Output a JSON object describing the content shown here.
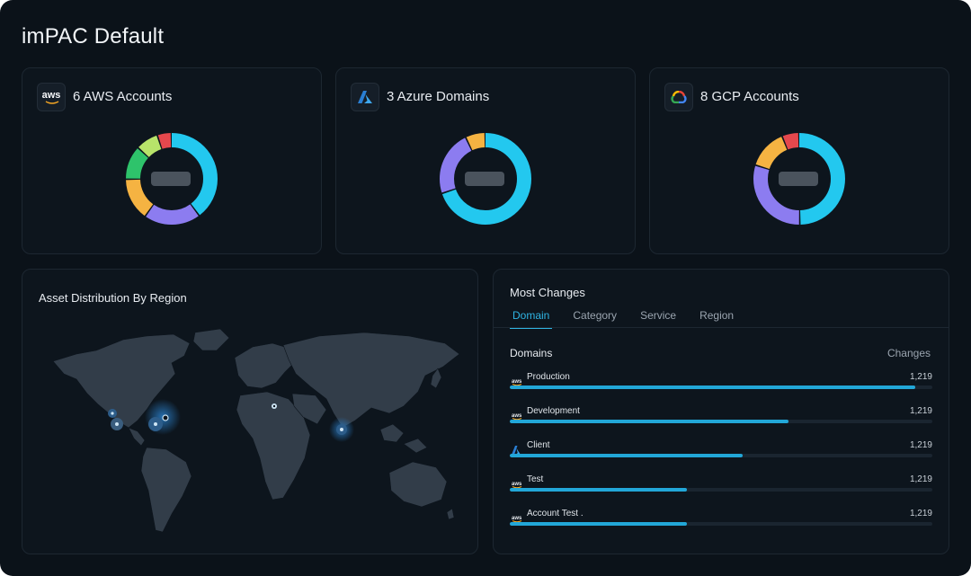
{
  "page_title": "imPAC Default",
  "accounts": [
    {
      "title": "6 AWS Accounts",
      "icon": "aws-icon",
      "segments": [
        {
          "v": 40,
          "c": "#23c8ef"
        },
        {
          "v": 20,
          "c": "#8c7cf0"
        },
        {
          "v": 15,
          "c": "#f5b342"
        },
        {
          "v": 12,
          "c": "#2ec36b"
        },
        {
          "v": 8,
          "c": "#b7e36a"
        },
        {
          "v": 5,
          "c": "#e5484d"
        }
      ]
    },
    {
      "title": "3 Azure Domains",
      "icon": "azure-icon",
      "segments": [
        {
          "v": 70,
          "c": "#23c8ef"
        },
        {
          "v": 23,
          "c": "#8c7cf0"
        },
        {
          "v": 7,
          "c": "#f5b342"
        }
      ]
    },
    {
      "title": "8 GCP Accounts",
      "icon": "gcp-icon",
      "segments": [
        {
          "v": 50,
          "c": "#23c8ef"
        },
        {
          "v": 30,
          "c": "#8c7cf0"
        },
        {
          "v": 14,
          "c": "#f5b342"
        },
        {
          "v": 6,
          "c": "#e5484d"
        }
      ]
    }
  ],
  "map": {
    "title": "Asset Distribution By Region"
  },
  "changes": {
    "title": "Most Changes",
    "tabs": [
      "Domain",
      "Category",
      "Service",
      "Region"
    ],
    "active_tab": "Domain",
    "col_domains": "Domains",
    "col_changes": "Changes",
    "rows": [
      {
        "name": "Production",
        "value": "1,219",
        "icon": "aws-icon",
        "progress": 0.96
      },
      {
        "name": "Development",
        "value": "1,219",
        "icon": "aws-icon",
        "progress": 0.66
      },
      {
        "name": "Client",
        "value": "1,219",
        "icon": "azure-icon",
        "progress": 0.55
      },
      {
        "name": "Test",
        "value": "1,219",
        "icon": "aws-icon",
        "progress": 0.42
      },
      {
        "name": "Account Test .",
        "value": "1,219",
        "icon": "aws-icon",
        "progress": 0.42
      }
    ]
  },
  "colors": {
    "accent": "#2fb4e3",
    "background": "#0b1219"
  }
}
